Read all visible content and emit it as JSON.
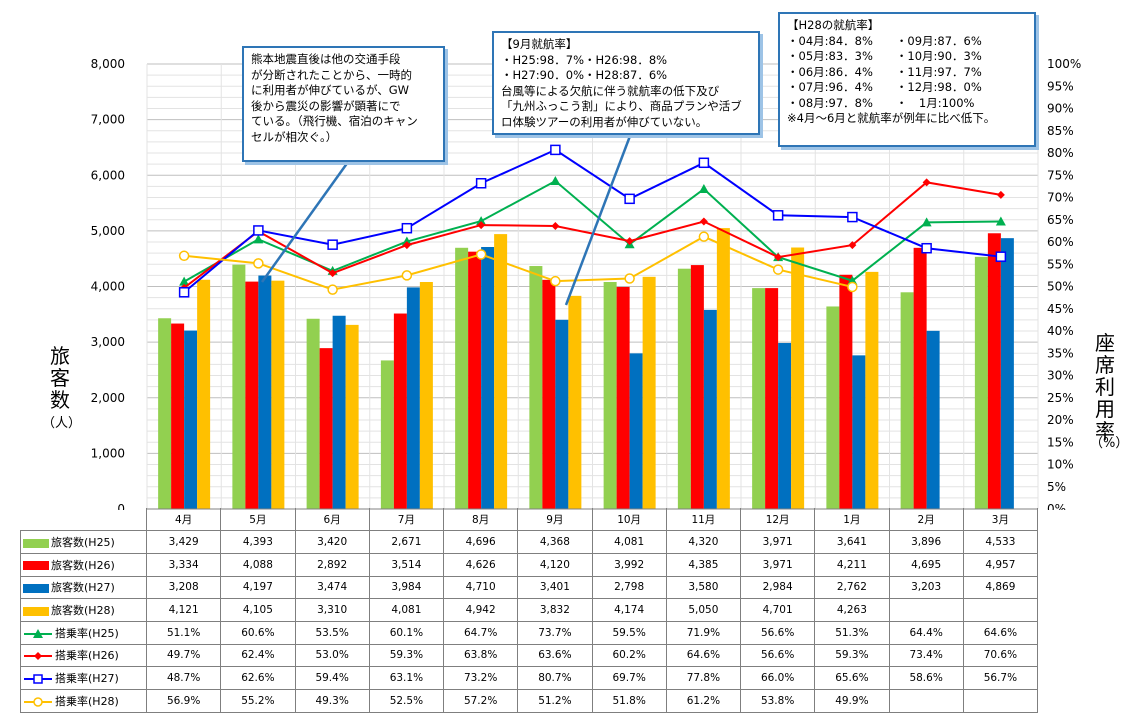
{
  "chart_data": {
    "type": "bar",
    "categories": [
      "4月",
      "5月",
      "6月",
      "7月",
      "8月",
      "9月",
      "10月",
      "11月",
      "12月",
      "1月",
      "2月",
      "3月"
    ],
    "y_left": {
      "label": "旅客数",
      "unit": "（人）",
      "range": [
        0,
        8000
      ],
      "ticks": [
        "0",
        "1,000",
        "2,000",
        "3,000",
        "4,000",
        "5,000",
        "6,000",
        "7,000",
        "8,000"
      ]
    },
    "y_right": {
      "label": "座席利用率",
      "unit": "（%）",
      "range": [
        0,
        100
      ],
      "ticks": [
        "0%",
        "5%",
        "10%",
        "15%",
        "20%",
        "25%",
        "30%",
        "35%",
        "40%",
        "45%",
        "50%",
        "55%",
        "60%",
        "65%",
        "70%",
        "75%",
        "80%",
        "85%",
        "90%",
        "95%",
        "100%"
      ]
    },
    "grid": true,
    "bars": [
      {
        "name": "旅客数(H25)",
        "color": "#92d050",
        "values": [
          3429,
          4393,
          3420,
          2671,
          4696,
          4368,
          4081,
          4320,
          3971,
          3641,
          3896,
          4533
        ],
        "labels": [
          "3,429",
          "4,393",
          "3,420",
          "2,671",
          "4,696",
          "4,368",
          "4,081",
          "4,320",
          "3,971",
          "3,641",
          "3,896",
          "4,533"
        ]
      },
      {
        "name": "旅客数(H26)",
        "color": "#ff0000",
        "values": [
          3334,
          4088,
          2892,
          3514,
          4626,
          4120,
          3992,
          4385,
          3971,
          4211,
          4695,
          4957
        ],
        "labels": [
          "3,334",
          "4,088",
          "2,892",
          "3,514",
          "4,626",
          "4,120",
          "3,992",
          "4,385",
          "3,971",
          "4,211",
          "4,695",
          "4,957"
        ]
      },
      {
        "name": "旅客数(H27)",
        "color": "#0070c0",
        "values": [
          3208,
          4197,
          3474,
          3984,
          4710,
          3401,
          2798,
          3580,
          2984,
          2762,
          3203,
          4869
        ],
        "labels": [
          "3,208",
          "4,197",
          "3,474",
          "3,984",
          "4,710",
          "3,401",
          "2,798",
          "3,580",
          "2,984",
          "2,762",
          "3,203",
          "4,869"
        ]
      },
      {
        "name": "旅客数(H28)",
        "color": "#ffc000",
        "values": [
          4121,
          4105,
          3310,
          4081,
          4942,
          3832,
          4174,
          5050,
          4701,
          4263,
          null,
          null
        ],
        "labels": [
          "4,121",
          "4,105",
          "3,310",
          "4,081",
          "4,942",
          "3,832",
          "4,174",
          "5,050",
          "4,701",
          "4,263",
          "",
          ""
        ]
      }
    ],
    "lines": [
      {
        "name": "搭乗率(H25)",
        "color": "#00b050",
        "marker": "triangle",
        "values": [
          51.1,
          60.6,
          53.5,
          60.1,
          64.7,
          73.7,
          59.5,
          71.9,
          56.6,
          51.3,
          64.4,
          64.6
        ],
        "labels": [
          "51.1%",
          "60.6%",
          "53.5%",
          "60.1%",
          "64.7%",
          "73.7%",
          "59.5%",
          "71.9%",
          "56.6%",
          "51.3%",
          "64.4%",
          "64.6%"
        ]
      },
      {
        "name": "搭乗率(H26)",
        "color": "#ff0000",
        "marker": "diamond",
        "values": [
          49.7,
          62.4,
          53.0,
          59.3,
          63.8,
          63.6,
          60.2,
          64.6,
          56.6,
          59.3,
          73.4,
          70.6
        ],
        "labels": [
          "49.7%",
          "62.4%",
          "53.0%",
          "59.3%",
          "63.8%",
          "63.6%",
          "60.2%",
          "64.6%",
          "56.6%",
          "59.3%",
          "73.4%",
          "70.6%"
        ]
      },
      {
        "name": "搭乗率(H27)",
        "color": "#0000ff",
        "marker": "square",
        "values": [
          48.7,
          62.6,
          59.4,
          63.1,
          73.2,
          80.7,
          69.7,
          77.8,
          66.0,
          65.6,
          58.6,
          56.7
        ],
        "labels": [
          "48.7%",
          "62.6%",
          "59.4%",
          "63.1%",
          "73.2%",
          "80.7%",
          "69.7%",
          "77.8%",
          "66.0%",
          "65.6%",
          "58.6%",
          "56.7%"
        ]
      },
      {
        "name": "搭乗率(H28)",
        "color": "#ffc000",
        "marker": "circle",
        "values": [
          56.9,
          55.2,
          49.3,
          52.5,
          57.2,
          51.2,
          51.8,
          61.2,
          53.8,
          49.9,
          null,
          null
        ],
        "labels": [
          "56.9%",
          "55.2%",
          "49.3%",
          "52.5%",
          "57.2%",
          "51.2%",
          "51.8%",
          "61.2%",
          "53.8%",
          "49.9%",
          "",
          ""
        ]
      }
    ]
  },
  "notes": {
    "kumamoto": [
      "熊本地震直後は他の交通手段",
      "が分断されたことから、一時的",
      "に利用者が伸びているが、GW",
      "後から震災の影響が顕著にで",
      "ている。（飛行機、宿泊のキャン",
      "セルが相次ぐ。）"
    ],
    "september": [
      "【9月就航率】",
      "・H25:98．7%・H26:98．8%",
      "・H27:90．0%・H28:87．6%",
      "台風等による欠航に伴う就航率の低下及び",
      "「九州ふっこう割」により、商品プランや活ブ",
      "ロ体験ツアーの利用者が伸びていない。"
    ],
    "h28": [
      "【H28の就航率】",
      "・04月:84．8%　　・09月:87．6%",
      "・05月:83．3%　　・10月:90．3%",
      "・06月:86．4%　　・11月:97．7%",
      "・07月:96．4%　　・12月:98．0%",
      "・08月:97．8%　　・　1月:100%",
      "※4月～6月と就航率が例年に比べ低下。"
    ]
  }
}
